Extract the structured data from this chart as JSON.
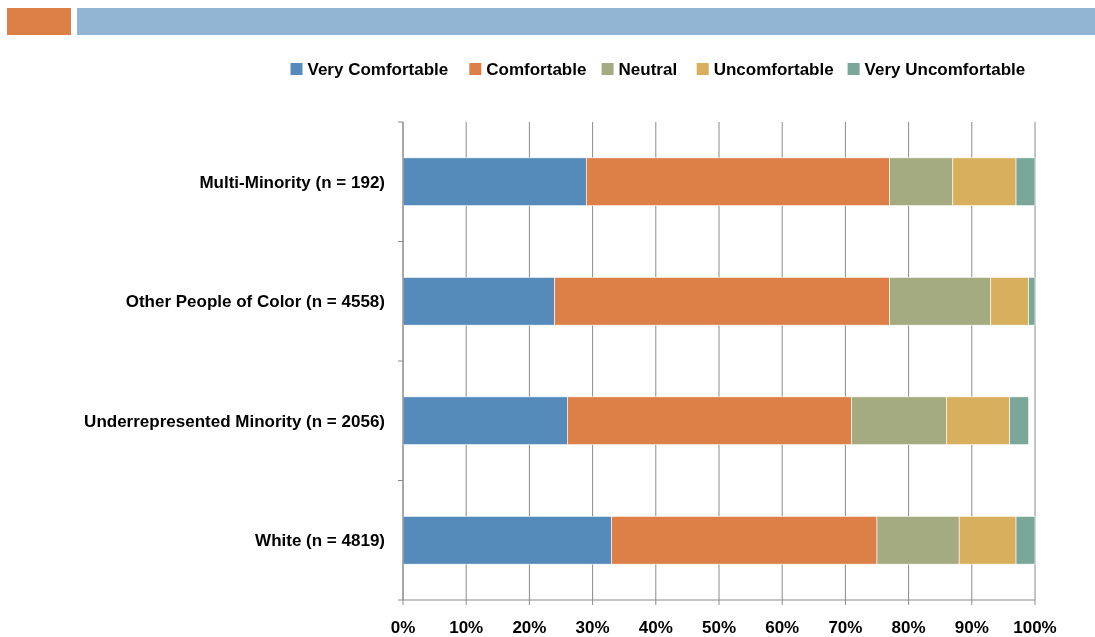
{
  "chart_data": {
    "type": "bar",
    "orientation": "horizontal",
    "stacked": true,
    "categories": [
      "Multi-Minority (n = 192)",
      "Other People of Color (n = 4558)",
      "Underrepresented Minority (n = 2056)",
      "White (n = 4819)"
    ],
    "series": [
      {
        "name": "Very Comfortable",
        "color": "#558bba",
        "values": [
          29,
          24,
          26,
          33
        ]
      },
      {
        "name": "Comfortable",
        "color": "#dd8048",
        "values": [
          48,
          53,
          45,
          42
        ]
      },
      {
        "name": "Neutral",
        "color": "#a5ab80",
        "values": [
          10,
          16,
          15,
          13
        ]
      },
      {
        "name": "Uncomfortable",
        "color": "#d8b05d",
        "values": [
          10,
          6,
          10,
          9
        ]
      },
      {
        "name": "Very Uncomfortable",
        "color": "#7ba69a",
        "values": [
          3,
          1,
          3,
          3
        ]
      }
    ],
    "xlim": [
      0,
      100
    ],
    "xticks": [
      {
        "value": 0,
        "label": "0%"
      },
      {
        "value": 10,
        "label": "10%"
      },
      {
        "value": 20,
        "label": "20%"
      },
      {
        "value": 30,
        "label": "30%"
      },
      {
        "value": 40,
        "label": "40%"
      },
      {
        "value": 50,
        "label": "50%"
      },
      {
        "value": 60,
        "label": "60%"
      },
      {
        "value": 70,
        "label": "70%"
      },
      {
        "value": 80,
        "label": "80%"
      },
      {
        "value": 90,
        "label": "90%"
      },
      {
        "value": 100,
        "label": "100%"
      }
    ],
    "grid": "x",
    "legend": "top"
  }
}
